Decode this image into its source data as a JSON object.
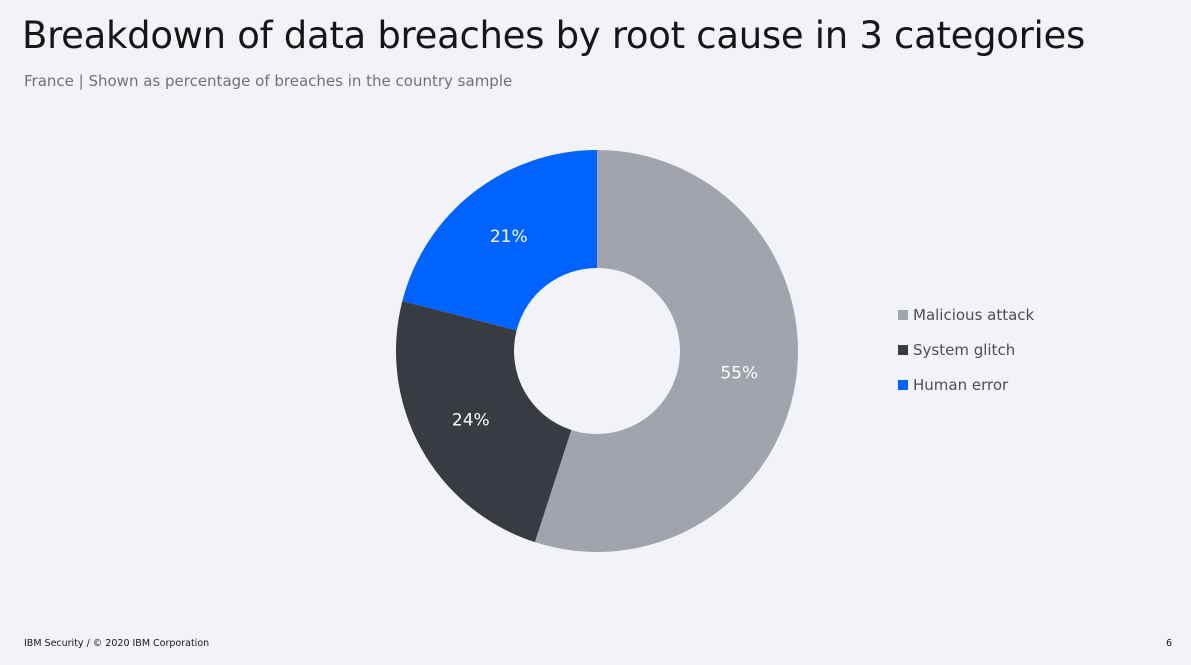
{
  "header": {
    "title": "Breakdown of data breaches by root cause in 3 categories",
    "subtitle": "France | Shown as percentage of breaches in the country sample"
  },
  "chart_data": {
    "type": "pie",
    "variant": "donut",
    "title": "Breakdown of data breaches by root cause in 3 categories",
    "subtitle": "France | Shown as percentage of breaches in the country sample",
    "categories": [
      "Malicious attack",
      "System glitch",
      "Human error"
    ],
    "values": [
      55,
      24,
      21
    ],
    "labels": [
      "55%",
      "24%",
      "21%"
    ],
    "colors": [
      "#a0a5ad",
      "#383b42",
      "#0062ff"
    ],
    "legend_position": "right",
    "start_angle": "12 o'clock",
    "direction": "clockwise"
  },
  "footer": {
    "left": "IBM Security / © 2020 IBM Corporation",
    "page_number": "6"
  }
}
